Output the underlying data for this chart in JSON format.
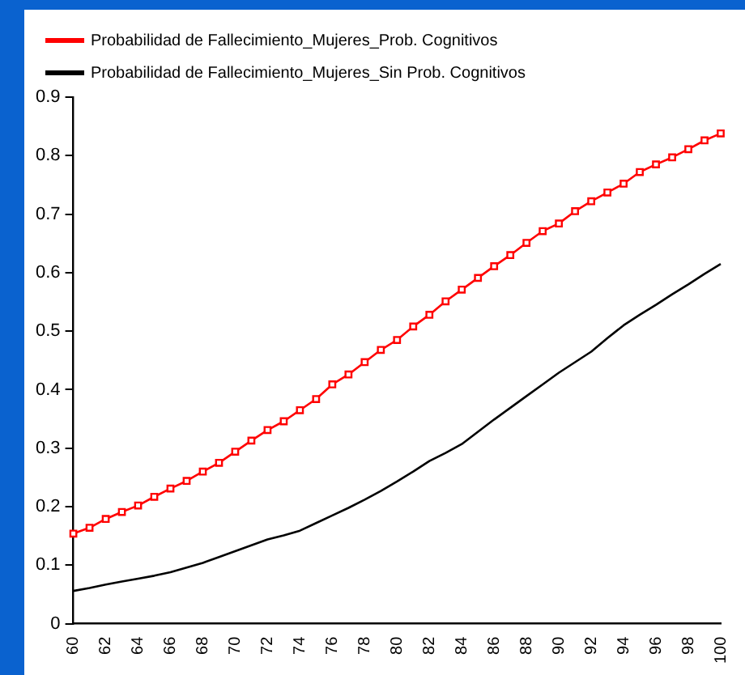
{
  "chart_data": {
    "type": "line",
    "categories": [
      "60",
      null,
      "62",
      null,
      "64",
      null,
      "66",
      null,
      "68",
      null,
      "70",
      null,
      "72",
      null,
      "74",
      null,
      "76",
      null,
      "78",
      null,
      "80",
      null,
      "82",
      null,
      "84",
      null,
      "86",
      null,
      "88",
      null,
      "90",
      null,
      "92",
      null,
      "94",
      null,
      "96",
      null,
      "98",
      null,
      "100"
    ],
    "series": [
      {
        "name": "Probabilidad de Fallecimiento_Mujeres_Prob. Cognitivos",
        "color": "#ff0000",
        "marker": "square",
        "values": [
          0.154,
          0.164,
          0.179,
          0.191,
          0.202,
          0.217,
          0.231,
          0.244,
          0.26,
          0.275,
          0.294,
          0.313,
          0.331,
          0.346,
          0.365,
          0.384,
          0.409,
          0.426,
          0.447,
          0.468,
          0.485,
          0.508,
          0.528,
          0.551,
          0.571,
          0.591,
          0.611,
          0.63,
          0.651,
          0.671,
          0.684,
          0.705,
          0.722,
          0.737,
          0.752,
          0.772,
          0.785,
          0.797,
          0.811,
          0.826,
          0.838
        ]
      },
      {
        "name": "Probabilidad de Fallecimiento_Mujeres_Sin Prob. Cognitivos",
        "color": "#000000",
        "marker": "none",
        "values": [
          0.056,
          0.061,
          0.067,
          0.072,
          0.077,
          0.082,
          0.088,
          0.096,
          0.104,
          0.114,
          0.124,
          0.134,
          0.144,
          0.151,
          0.159,
          0.172,
          0.185,
          0.198,
          0.212,
          0.227,
          0.243,
          0.26,
          0.278,
          0.292,
          0.307,
          0.328,
          0.349,
          0.369,
          0.389,
          0.409,
          0.429,
          0.447,
          0.465,
          0.488,
          0.51,
          0.528,
          0.545,
          0.563,
          0.58,
          0.598,
          0.615
        ]
      }
    ],
    "ylim": [
      0,
      0.9
    ],
    "yticks": [
      0,
      0.1,
      0.2,
      0.3,
      0.4,
      0.5,
      0.6,
      0.7,
      0.8,
      0.9
    ],
    "grid": false,
    "legend": "top left",
    "line_style": "solid"
  }
}
